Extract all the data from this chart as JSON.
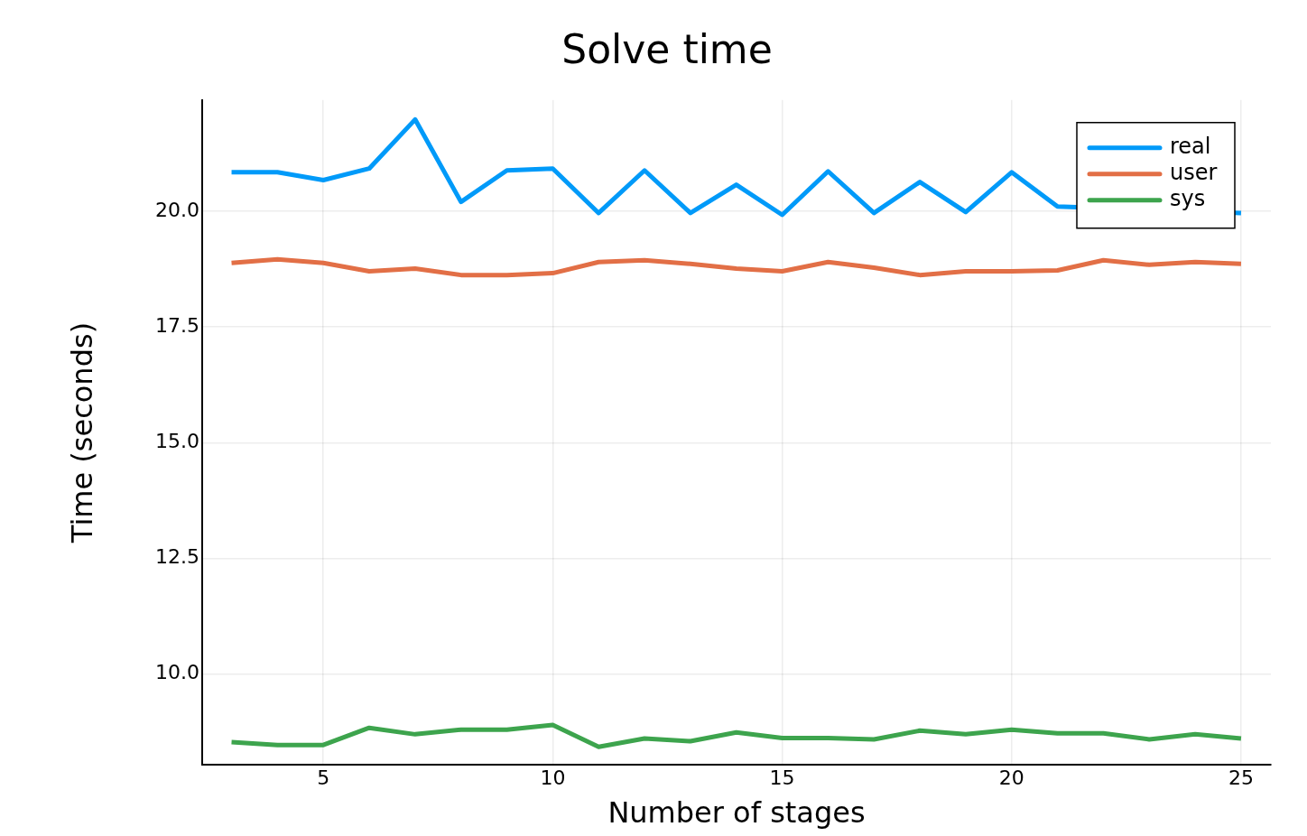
{
  "chart_data": {
    "type": "line",
    "title": "Solve time",
    "xlabel": "Number of stages",
    "ylabel": "Time (seconds)",
    "x": [
      3,
      4,
      5,
      6,
      7,
      8,
      9,
      10,
      11,
      12,
      13,
      14,
      15,
      16,
      17,
      18,
      19,
      20,
      21,
      22,
      23,
      24,
      25
    ],
    "xlim": [
      2.36,
      25.65
    ],
    "xticks": [
      5,
      10,
      15,
      20,
      25
    ],
    "ylim": [
      8.04,
      22.4
    ],
    "yticks": [
      {
        "value": 10,
        "label": "10.0"
      },
      {
        "value": 12.5,
        "label": "12.5"
      },
      {
        "value": 15,
        "label": "15.0"
      },
      {
        "value": 17.5,
        "label": "17.5"
      },
      {
        "value": 20,
        "label": "20.0"
      }
    ],
    "grid": true,
    "legend": "top right",
    "series": [
      {
        "name": "real",
        "color": "#009af9",
        "values": [
          20.84,
          20.84,
          20.67,
          20.92,
          21.98,
          20.2,
          20.88,
          20.92,
          19.96,
          20.88,
          19.96,
          20.57,
          19.92,
          20.86,
          19.96,
          20.63,
          19.98,
          20.84,
          20.1,
          null,
          null,
          null,
          19.96
        ]
      },
      {
        "name": "user",
        "color": "#e26f46",
        "values": [
          18.88,
          18.96,
          18.88,
          18.7,
          18.76,
          18.62,
          18.62,
          18.66,
          18.9,
          18.94,
          18.86,
          18.76,
          18.7,
          18.9,
          18.78,
          18.62,
          18.7,
          18.7,
          18.72,
          18.94,
          18.84,
          18.9,
          18.86
        ]
      },
      {
        "name": "sys",
        "color": "#3da44d",
        "values": [
          8.53,
          8.47,
          8.47,
          8.84,
          8.7,
          8.8,
          8.8,
          8.9,
          8.43,
          8.61,
          8.55,
          8.74,
          8.62,
          8.62,
          8.59,
          8.78,
          8.7,
          8.8,
          8.72,
          8.72,
          8.59,
          8.7,
          8.61
        ]
      }
    ]
  }
}
